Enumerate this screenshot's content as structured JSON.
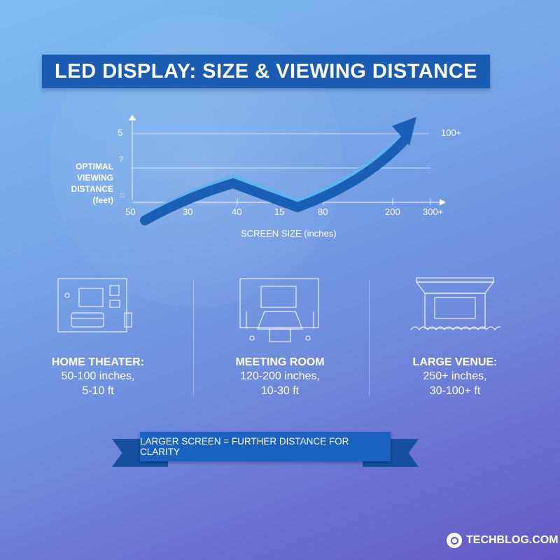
{
  "title": "LED DISPLAY: SIZE & VIEWING DISTANCE",
  "chart_data": {
    "type": "line",
    "ylabel": "OPTIMAL VIEWING DISTANCE (feet)",
    "xlabel": "SCREEN SIZE (inches)",
    "x_tick_labels": [
      "50",
      "30",
      "40",
      "15",
      "80",
      "200",
      "300+"
    ],
    "y_tick_labels": [
      "5",
      "?",
      "□"
    ],
    "right_label": "100+",
    "grid": true,
    "colors": {
      "line": "#1a5fb4",
      "highlight": "#5fb4f0"
    }
  },
  "venues": [
    {
      "icon": "home-theater-icon",
      "title": "HOME THEATER:",
      "line1": "50-100 inches,",
      "line2": "5-10 ft"
    },
    {
      "icon": "meeting-room-icon",
      "title": "MEETING ROOM",
      "line1": "120-200 inches,",
      "line2": "10-30 ft"
    },
    {
      "icon": "large-venue-icon",
      "title": "LARGE VENUE:",
      "line1": "250+ inches,",
      "line2": "30-100+ ft"
    }
  ],
  "ribbon": "LARGER SCREEN = FURTHER DISTANCE FOR CLARITY",
  "brand": "TECHBLOG.COM"
}
